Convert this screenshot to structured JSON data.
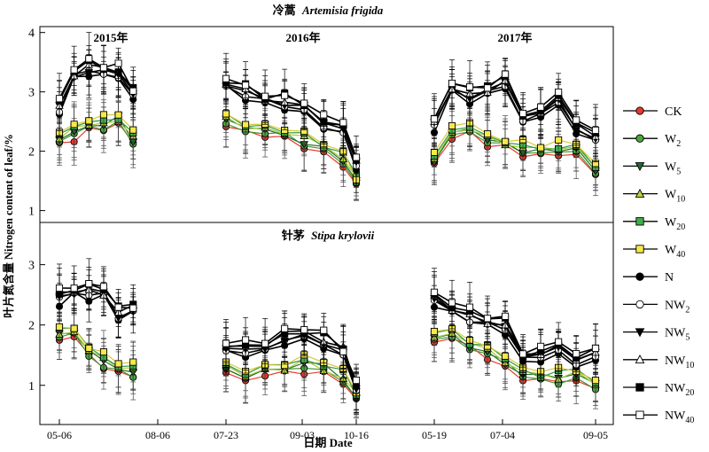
{
  "chart_data": {
    "type": "line",
    "ylabel": "叶片氮含量 Nitrogen content of leaf/%",
    "xlabel": "日期 Date",
    "x_ticks": [
      "05-06",
      "08-06",
      "07-23",
      "09-03",
      "10-16",
      "05-19",
      "07-04",
      "09-05"
    ],
    "year_labels": [
      "2015年",
      "2016年",
      "2017年"
    ],
    "legend": [
      {
        "name": "CK",
        "sub": "",
        "marker": "circle",
        "fill": "#e8392c",
        "line": "#000000"
      },
      {
        "name": "W",
        "sub": "2",
        "marker": "circle",
        "fill": "#4aa83a",
        "line": "#000000"
      },
      {
        "name": "W",
        "sub": "5",
        "marker": "triangle-down",
        "fill": "#1e6b2a",
        "line": "#000000"
      },
      {
        "name": "W",
        "sub": "10",
        "marker": "triangle-up",
        "fill": "#b6d335",
        "line": "#000000"
      },
      {
        "name": "W",
        "sub": "20",
        "marker": "square",
        "fill": "#3fae49",
        "line": "#000000"
      },
      {
        "name": "W",
        "sub": "40",
        "marker": "square",
        "fill": "#f6e94a",
        "line": "#000000"
      },
      {
        "name": "N",
        "sub": "",
        "marker": "circle",
        "fill": "#000000",
        "line": "#000000"
      },
      {
        "name": "NW",
        "sub": "2",
        "marker": "circle",
        "fill": "#ffffff",
        "line": "#000000"
      },
      {
        "name": "NW",
        "sub": "5",
        "marker": "triangle-down",
        "fill": "#000000",
        "line": "#000000"
      },
      {
        "name": "NW",
        "sub": "10",
        "marker": "triangle-up",
        "fill": "#ffffff",
        "line": "#000000"
      },
      {
        "name": "NW",
        "sub": "20",
        "marker": "square",
        "fill": "#000000",
        "line": "#000000"
      },
      {
        "name": "NW",
        "sub": "40",
        "marker": "square",
        "fill": "#ffffff",
        "line": "#000000"
      }
    ],
    "line_colors": [
      "#e8392c",
      "#3f9a36",
      "#2a6e2c",
      "#a8c93a",
      "#2f9a3e",
      "#d6c83a",
      "#000000",
      "#000000",
      "#000000",
      "#000000",
      "#000000",
      "#000000"
    ],
    "panels": [
      {
        "title": "冷蒿",
        "title_latin": "Artemisia frigida",
        "ylim": [
          0.8,
          4.1
        ],
        "yticks": [
          1,
          2,
          3,
          4
        ],
        "years": [
          {
            "base": [
              [
                0.0,
                2.25
              ],
              [
                0.15,
                2.32
              ],
              [
                0.3,
                2.45
              ],
              [
                0.45,
                2.45
              ],
              [
                0.6,
                2.55
              ],
              [
                0.75,
                2.25
              ]
            ],
            "high": [
              [
                0.0,
                2.75
              ],
              [
                0.15,
                3.3
              ],
              [
                0.3,
                3.42
              ],
              [
                0.45,
                3.35
              ],
              [
                0.6,
                3.32
              ],
              [
                0.75,
                2.95
              ]
            ]
          },
          {
            "base": [
              [
                0.0,
                2.5
              ],
              [
                0.15,
                2.42
              ],
              [
                0.3,
                2.35
              ],
              [
                0.45,
                2.3
              ],
              [
                0.6,
                2.2
              ],
              [
                0.75,
                2.05
              ],
              [
                0.9,
                1.85
              ],
              [
                1.0,
                1.5
              ]
            ],
            "high": [
              [
                0.0,
                3.15
              ],
              [
                0.15,
                3.02
              ],
              [
                0.3,
                2.9
              ],
              [
                0.45,
                2.85
              ],
              [
                0.6,
                2.75
              ],
              [
                0.75,
                2.5
              ],
              [
                0.9,
                2.35
              ],
              [
                1.0,
                1.85
              ]
            ]
          },
          {
            "base": [
              [
                0.0,
                1.9
              ],
              [
                0.11,
                2.3
              ],
              [
                0.22,
                2.4
              ],
              [
                0.33,
                2.2
              ],
              [
                0.44,
                2.15
              ],
              [
                0.55,
                2.05
              ],
              [
                0.66,
                2.0
              ],
              [
                0.77,
                2.05
              ],
              [
                0.88,
                2.0
              ],
              [
                1.0,
                1.75
              ]
            ],
            "high": [
              [
                0.0,
                2.45
              ],
              [
                0.11,
                3.1
              ],
              [
                0.22,
                2.95
              ],
              [
                0.33,
                3.05
              ],
              [
                0.44,
                3.2
              ],
              [
                0.55,
                2.55
              ],
              [
                0.66,
                2.7
              ],
              [
                0.77,
                2.85
              ],
              [
                0.88,
                2.45
              ],
              [
                1.0,
                2.2
              ]
            ]
          }
        ]
      },
      {
        "title": "针茅",
        "title_latin": "Stipa krylovii",
        "ylim": [
          0.35,
          3.7
        ],
        "yticks": [
          1,
          2,
          3
        ],
        "years": [
          {
            "base": [
              [
                0.0,
                1.9
              ],
              [
                0.15,
                1.85
              ],
              [
                0.3,
                1.6
              ],
              [
                0.45,
                1.4
              ],
              [
                0.6,
                1.3
              ],
              [
                0.75,
                1.25
              ]
            ],
            "high": [
              [
                0.0,
                2.45
              ],
              [
                0.15,
                2.55
              ],
              [
                0.3,
                2.55
              ],
              [
                0.45,
                2.55
              ],
              [
                0.6,
                2.2
              ],
              [
                0.75,
                2.25
              ]
            ]
          },
          {
            "base": [
              [
                0.0,
                1.25
              ],
              [
                0.15,
                1.2
              ],
              [
                0.3,
                1.25
              ],
              [
                0.45,
                1.3
              ],
              [
                0.6,
                1.35
              ],
              [
                0.75,
                1.3
              ],
              [
                0.9,
                1.15
              ],
              [
                1.0,
                0.8
              ]
            ],
            "high": [
              [
                0.0,
                1.65
              ],
              [
                0.15,
                1.6
              ],
              [
                0.3,
                1.65
              ],
              [
                0.45,
                1.8
              ],
              [
                0.6,
                1.85
              ],
              [
                0.75,
                1.75
              ],
              [
                0.9,
                1.55
              ],
              [
                1.0,
                1.0
              ]
            ]
          },
          {
            "base": [
              [
                0.0,
                1.85
              ],
              [
                0.11,
                1.8
              ],
              [
                0.22,
                1.7
              ],
              [
                0.33,
                1.55
              ],
              [
                0.44,
                1.4
              ],
              [
                0.55,
                1.2
              ],
              [
                0.66,
                1.15
              ],
              [
                0.77,
                1.15
              ],
              [
                0.88,
                1.15
              ],
              [
                1.0,
                1.05
              ]
            ],
            "high": [
              [
                0.0,
                2.4
              ],
              [
                0.11,
                2.3
              ],
              [
                0.22,
                2.15
              ],
              [
                0.33,
                2.05
              ],
              [
                0.44,
                2.0
              ],
              [
                0.55,
                1.45
              ],
              [
                0.66,
                1.55
              ],
              [
                0.77,
                1.6
              ],
              [
                0.88,
                1.45
              ],
              [
                1.0,
                1.5
              ]
            ]
          }
        ]
      }
    ]
  }
}
